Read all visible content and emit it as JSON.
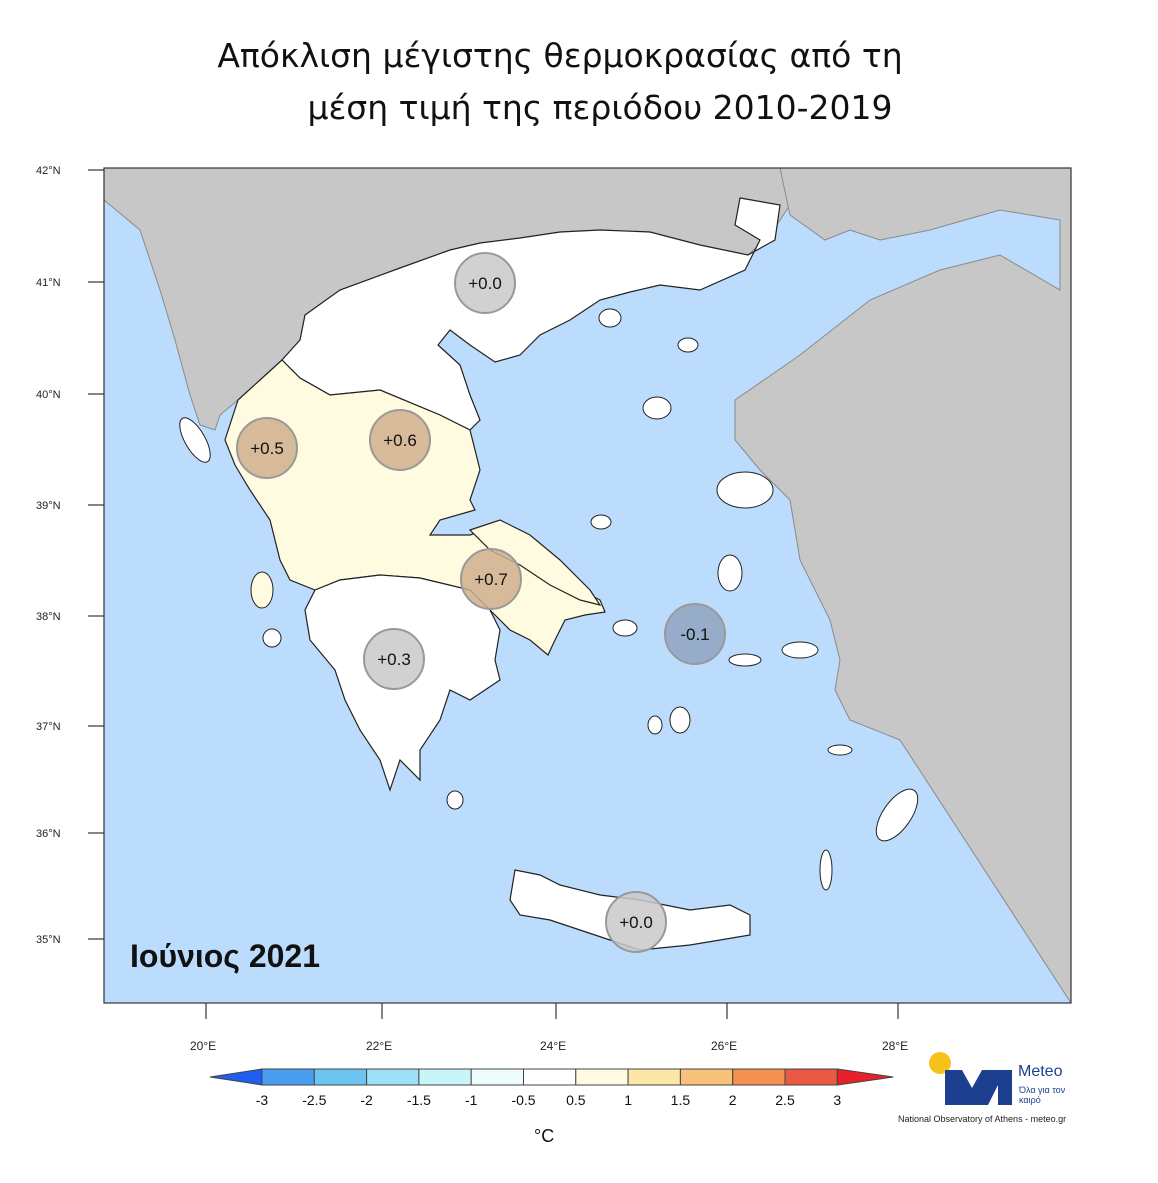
{
  "title_line1": "Απόκλιση μέγιστης θερμοκρασίας από τη",
  "title_line2": "μέση τιμή της περιόδου 2010-2019",
  "month_label": "Ιούνιος 2021",
  "lat_labels": [
    "42°N",
    "41°N",
    "40°N",
    "39°N",
    "38°N",
    "37°N",
    "36°N",
    "35°N"
  ],
  "lon_labels": [
    "20°E",
    "22°E",
    "24°E",
    "26°E",
    "28°E"
  ],
  "colorbar": {
    "ticks": [
      "-3",
      "-2.5",
      "-2",
      "-1.5",
      "-1",
      "-0.5",
      "0.5",
      "1",
      "1.5",
      "2",
      "2.5",
      "3"
    ],
    "colors": [
      "#1f5ef0",
      "#4a9ef0",
      "#6cc4f0",
      "#9ee0f5",
      "#c9f5fa",
      "#eefcfd",
      "#ffffff",
      "#fffbe0",
      "#fde7a8",
      "#f9c27a",
      "#f49050",
      "#e95a45",
      "#e8202a"
    ],
    "unit": "°C"
  },
  "regions": [
    {
      "name": "north",
      "value": "+0.0",
      "badge_color": "#c9c9c9"
    },
    {
      "name": "epirus",
      "value": "+0.5",
      "badge_color": "#cfae8c"
    },
    {
      "name": "thessaly",
      "value": "+0.6",
      "badge_color": "#cfae8c"
    },
    {
      "name": "central",
      "value": "+0.7",
      "badge_color": "#cfae8c"
    },
    {
      "name": "peloponnese",
      "value": "+0.3",
      "badge_color": "#c9c9c9"
    },
    {
      "name": "aegean",
      "value": "-0.1",
      "badge_color": "#8fa3bf"
    },
    {
      "name": "crete",
      "value": "+0.0",
      "badge_color": "#c9c9c9"
    }
  ],
  "map_colors": {
    "sea": "#bcdcfd",
    "land_other": "#c7c7c7",
    "greece_white": "#ffffff",
    "greece_warm": "#fffbe0"
  },
  "logo": {
    "name": "Meteo",
    "tagline": "Όλα για τον καιρό",
    "footer": "National Observatory of Athens - meteo.gr",
    "color_main": "#1d3f8f",
    "color_sun": "#f6c219"
  }
}
